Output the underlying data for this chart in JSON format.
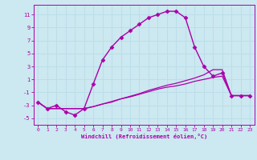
{
  "xlabel": "Windchill (Refroidissement éolien,°C)",
  "ylabel": "",
  "background_color": "#cce8f0",
  "line_color": "#aa00aa",
  "grid_color": "#b8dde8",
  "xlim": [
    -0.5,
    23.5
  ],
  "ylim": [
    -6,
    12.5
  ],
  "yticks": [
    -5,
    -3,
    -1,
    1,
    3,
    5,
    7,
    9,
    11
  ],
  "xticks": [
    0,
    1,
    2,
    3,
    4,
    5,
    6,
    7,
    8,
    9,
    10,
    11,
    12,
    13,
    14,
    15,
    16,
    17,
    18,
    19,
    20,
    21,
    22,
    23
  ],
  "series": [
    {
      "x": [
        0,
        1,
        2,
        3,
        4,
        5,
        6,
        7,
        8,
        9,
        10,
        11,
        12,
        13,
        14,
        15,
        16,
        17,
        18,
        19,
        20,
        21,
        22,
        23
      ],
      "y": [
        -2.5,
        -3.5,
        -3.0,
        -4.0,
        -4.5,
        -3.5,
        0.3,
        4.0,
        6.0,
        7.5,
        8.5,
        9.5,
        10.5,
        11.0,
        11.5,
        11.5,
        10.5,
        6.0,
        3.0,
        1.5,
        2.0,
        -1.5,
        -1.5,
        -1.5
      ],
      "marker": "D",
      "markersize": 2.5,
      "linewidth": 1.0,
      "has_marker": true
    },
    {
      "x": [
        0,
        1,
        2,
        3,
        4,
        5,
        6,
        7,
        8,
        9,
        10,
        11,
        12,
        13,
        14,
        15,
        16,
        17,
        18,
        19,
        20,
        21,
        22,
        23
      ],
      "y": [
        -2.5,
        -3.5,
        -3.5,
        -3.5,
        -3.5,
        -3.5,
        -3.2,
        -2.8,
        -2.5,
        -2.0,
        -1.7,
        -1.3,
        -0.9,
        -0.5,
        -0.2,
        0.0,
        0.3,
        0.7,
        1.0,
        1.3,
        1.5,
        -1.5,
        -1.5,
        -1.5
      ],
      "marker": null,
      "markersize": 0,
      "linewidth": 0.9,
      "has_marker": false
    },
    {
      "x": [
        0,
        1,
        2,
        3,
        4,
        5,
        6,
        7,
        8,
        9,
        10,
        11,
        12,
        13,
        14,
        15,
        16,
        17,
        18,
        19,
        20,
        21,
        22,
        23
      ],
      "y": [
        -2.5,
        -3.5,
        -3.5,
        -3.5,
        -3.5,
        -3.5,
        -3.2,
        -2.8,
        -2.4,
        -2.0,
        -1.6,
        -1.2,
        -0.7,
        -0.3,
        0.1,
        0.4,
        0.8,
        1.2,
        1.7,
        2.5,
        2.5,
        -1.5,
        -1.5,
        -1.5
      ],
      "marker": null,
      "markersize": 0,
      "linewidth": 0.9,
      "has_marker": false
    }
  ]
}
